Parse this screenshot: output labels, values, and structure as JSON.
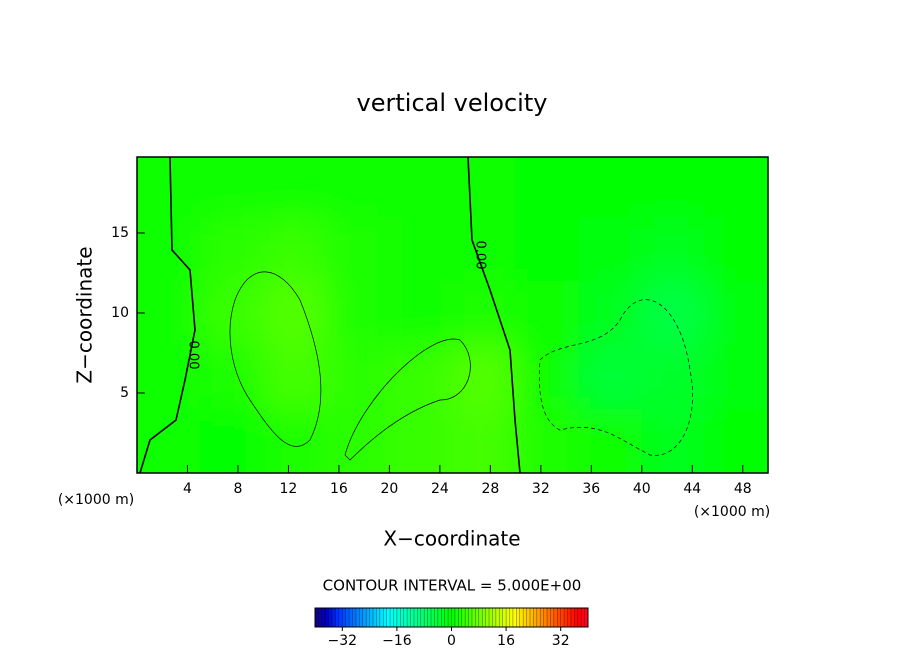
{
  "chart_data": {
    "type": "contour",
    "title": "vertical velocity",
    "xlabel": "X−coordinate",
    "ylabel": "Z−coordinate",
    "x_unit_label": "(×1000 m)",
    "y_unit_label": "(×1000 m)",
    "xlim": [
      0,
      50
    ],
    "ylim": [
      0,
      19.75
    ],
    "xticks": [
      4,
      8,
      12,
      16,
      20,
      24,
      28,
      32,
      36,
      40,
      44,
      48
    ],
    "yticks": [
      5,
      10,
      15
    ],
    "x": [
      2.5,
      7.5,
      12.5,
      17.5,
      22.5,
      27.5,
      32.5,
      37.5,
      42.5,
      47.5
    ],
    "z": [
      2,
      6,
      10,
      14,
      18
    ],
    "values": [
      [
        1,
        0,
        2,
        3,
        4,
        5,
        2,
        1,
        -2,
        0
      ],
      [
        1,
        2,
        5,
        3,
        4,
        6,
        1,
        -4,
        -3,
        -1
      ],
      [
        1,
        4,
        6,
        2,
        1,
        2,
        1,
        -2,
        -5,
        -1
      ],
      [
        1,
        3,
        4,
        2,
        1,
        1,
        0,
        -1,
        -2,
        0
      ],
      [
        1,
        1,
        1,
        1,
        1,
        1,
        0,
        0,
        0,
        0
      ]
    ],
    "contour_labels": [
      "0.00",
      "0.00"
    ],
    "contour_interval_text": "CONTOUR INTERVAL = 5.000E+00",
    "colorbar_lim": [
      -40,
      40
    ],
    "colorbar_ticks": [
      {
        "value": -32,
        "label": "−32"
      },
      {
        "value": -16,
        "label": "−16"
      },
      0,
      16,
      32
    ]
  }
}
